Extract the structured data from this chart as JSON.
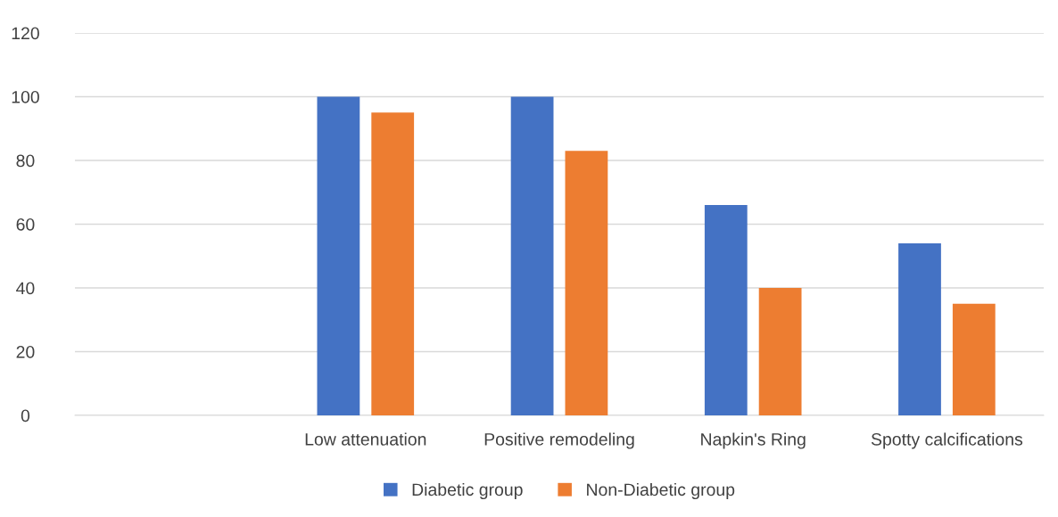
{
  "chart_data": {
    "type": "bar",
    "categories": [
      null,
      "Low attenuation",
      "Positive remodeling",
      "Napkin's Ring",
      "Spotty calcifications"
    ],
    "series": [
      {
        "name": "Diabetic group",
        "color": "#4472c4",
        "values": [
          null,
          100,
          100,
          66,
          54
        ]
      },
      {
        "name": "Non-Diabetic group",
        "color": "#ed7d31",
        "values": [
          null,
          95,
          83,
          40,
          35
        ]
      }
    ],
    "ylim": [
      0,
      120
    ],
    "yticks": [
      0,
      20,
      40,
      60,
      80,
      100,
      120
    ],
    "grid": "y",
    "legend": "bottom"
  }
}
